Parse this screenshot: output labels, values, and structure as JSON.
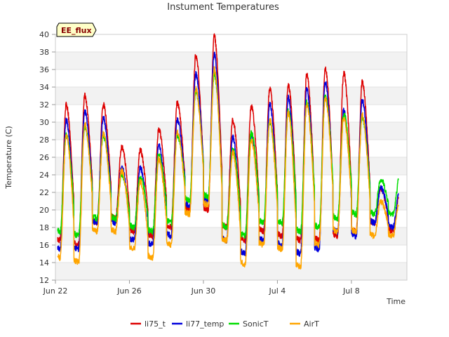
{
  "chart_data": {
    "type": "line",
    "title": "Instument Temperatures",
    "xlabel": "Time",
    "ylabel": "Temperature (C)",
    "badge": "EE_flux",
    "xlim": [
      "2023-06-22",
      "2023-07-11"
    ],
    "ylim": [
      12,
      40
    ],
    "yticks": [
      12,
      14,
      16,
      18,
      20,
      22,
      24,
      26,
      28,
      30,
      32,
      34,
      36,
      38,
      40
    ],
    "xticks": [
      {
        "date": "2023-06-22",
        "label": "Jun 22"
      },
      {
        "date": "2023-06-26",
        "label": "Jun 26"
      },
      {
        "date": "2023-06-30",
        "label": "Jun 30"
      },
      {
        "date": "2023-07-04",
        "label": "Jul 4"
      },
      {
        "date": "2023-07-08",
        "label": "Jul 8"
      }
    ],
    "grid": "horizontal bands",
    "legend_position": "bottom",
    "start_date": "2023-06-22",
    "series": [
      {
        "name": "li75_t",
        "color": "#dd0000",
        "daily_min": [
          16.5,
          16.0,
          18.5,
          19.0,
          17.5,
          17.0,
          18.0,
          20.0,
          20.0,
          18.0,
          16.5,
          17.5,
          17.0,
          16.5,
          16.5,
          17.0,
          17.5,
          18.5,
          17.5
        ],
        "daily_max": [
          32.0,
          33.0,
          32.0,
          27.2,
          26.8,
          29.2,
          32.2,
          37.6,
          39.8,
          30.2,
          31.8,
          33.8,
          34.2,
          35.4,
          36.2,
          35.6,
          34.5,
          null,
          null
        ]
      },
      {
        "name": "li77_temp",
        "color": "#0000dd",
        "daily_min": [
          15.5,
          15.5,
          18.5,
          18.5,
          16.5,
          16.0,
          17.0,
          20.5,
          21.0,
          16.5,
          15.0,
          16.5,
          16.0,
          15.0,
          15.5,
          17.5,
          17.0,
          18.5,
          18.0
        ],
        "daily_max": [
          30.2,
          31.2,
          30.5,
          24.8,
          24.8,
          27.3,
          30.3,
          35.5,
          37.8,
          28.3,
          28.5,
          32.0,
          32.8,
          33.8,
          34.6,
          31.3,
          32.5,
          null,
          null
        ]
      },
      {
        "name": "SonicT",
        "color": "#00dd00",
        "daily_min": [
          17.5,
          17.0,
          19.0,
          19.0,
          18.0,
          17.5,
          18.5,
          21.0,
          21.5,
          18.0,
          17.0,
          18.5,
          18.5,
          17.5,
          18.0,
          19.0,
          19.5,
          19.5,
          19.5
        ],
        "daily_max": [
          28.5,
          29.5,
          28.5,
          24.0,
          23.8,
          26.3,
          28.5,
          33.5,
          35.5,
          26.8,
          28.8,
          30.0,
          31.2,
          32.2,
          33.0,
          31.0,
          30.5,
          null,
          null
        ]
      },
      {
        "name": "AirT",
        "color": "#ffa500",
        "daily_min": [
          14.5,
          14.0,
          17.5,
          17.5,
          15.5,
          14.5,
          16.0,
          19.5,
          20.5,
          16.5,
          13.8,
          16.0,
          15.5,
          13.5,
          16.0,
          17.5,
          17.5,
          17.0,
          17.0
        ],
        "daily_max": [
          28.5,
          29.8,
          28.8,
          24.5,
          23.2,
          25.8,
          28.8,
          33.8,
          36.0,
          26.5,
          28.0,
          30.2,
          31.0,
          32.0,
          32.8,
          30.5,
          30.8,
          null,
          null
        ]
      }
    ]
  }
}
